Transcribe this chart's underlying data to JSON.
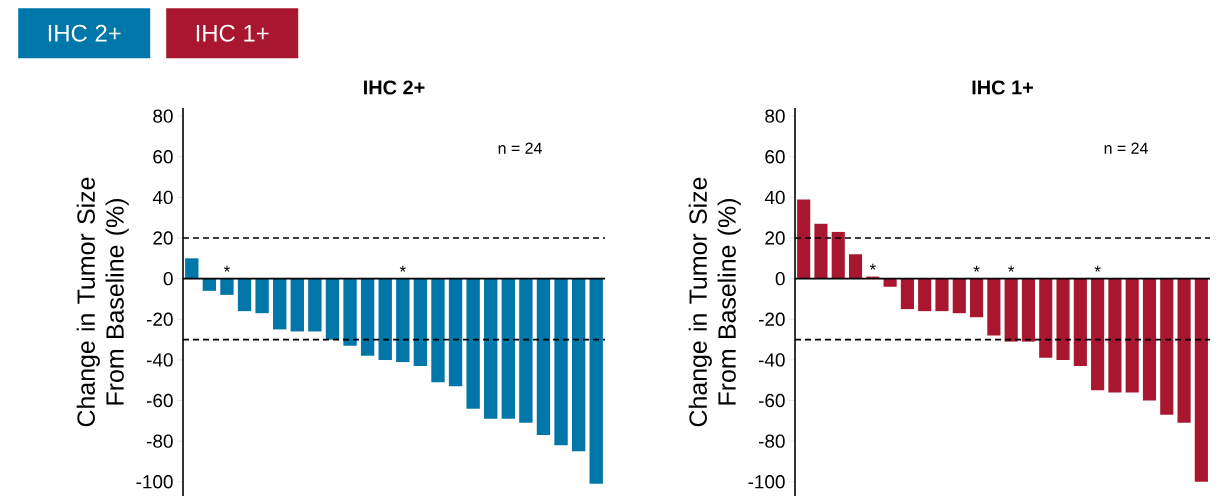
{
  "chart_data": [
    {
      "type": "bar",
      "title": "IHC 2+",
      "ylabel": "Change in Tumor Size From Baseline (%)",
      "categories": [
        null,
        null,
        null,
        null,
        null,
        null,
        null,
        null,
        null,
        null,
        null,
        null,
        null,
        null,
        null,
        null,
        null,
        null,
        null,
        null,
        null,
        null,
        null,
        null
      ],
      "series": [
        {
          "name": "IHC 2+",
          "color": "#0077a8",
          "values": [
            10,
            -6,
            -8,
            -16,
            -17,
            -25,
            -26,
            -26,
            -30,
            -33,
            -38,
            -40,
            -41,
            -43,
            -51,
            -53,
            -64,
            -69,
            -69,
            -71,
            -77,
            -82,
            -85,
            -101
          ],
          "value_labels": [
            null,
            null,
            "*",
            null,
            null,
            null,
            null,
            null,
            null,
            null,
            null,
            null,
            "*",
            null,
            null,
            null,
            null,
            null,
            null,
            null,
            null,
            null,
            null,
            null
          ]
        }
      ],
      "ylim": [
        -107,
        84
      ],
      "yticks": [
        80,
        60,
        40,
        20,
        0,
        -20,
        -40,
        -60,
        -80,
        -100
      ],
      "ref_lines": [
        {
          "axis": "y",
          "value": 20,
          "line_style": "dashed"
        },
        {
          "axis": "y",
          "value": -30,
          "line_style": "dashed"
        }
      ],
      "annotations": [
        "n = 24"
      ],
      "legend": "top left"
    },
    {
      "type": "bar",
      "title": "IHC 1+",
      "ylabel": "Change in Tumor Size From Baseline (%)",
      "categories": [
        null,
        null,
        null,
        null,
        null,
        null,
        null,
        null,
        null,
        null,
        null,
        null,
        null,
        null,
        null,
        null,
        null,
        null,
        null,
        null,
        null,
        null,
        null,
        null
      ],
      "series": [
        {
          "name": "IHC 1+",
          "color": "#a8172f",
          "values": [
            39,
            27,
            23,
            12,
            1,
            -4,
            -15,
            -16,
            -16,
            -17,
            -19,
            -28,
            -31,
            -31,
            -39,
            -40,
            -43,
            -55,
            -56,
            -56,
            -60,
            -67,
            -71,
            -100
          ],
          "value_labels": [
            null,
            null,
            null,
            null,
            "*",
            null,
            null,
            null,
            null,
            null,
            "*",
            null,
            "*",
            null,
            null,
            null,
            null,
            "*",
            null,
            null,
            null,
            null,
            null,
            null
          ]
        }
      ],
      "ylim": [
        -107,
        84
      ],
      "yticks": [
        80,
        60,
        40,
        20,
        0,
        -20,
        -40,
        -60,
        -80,
        -100
      ],
      "ref_lines": [
        {
          "axis": "y",
          "value": 20,
          "line_style": "dashed"
        },
        {
          "axis": "y",
          "value": -30,
          "line_style": "dashed"
        }
      ],
      "annotations": [
        "n = 24"
      ],
      "legend": "top left"
    }
  ]
}
